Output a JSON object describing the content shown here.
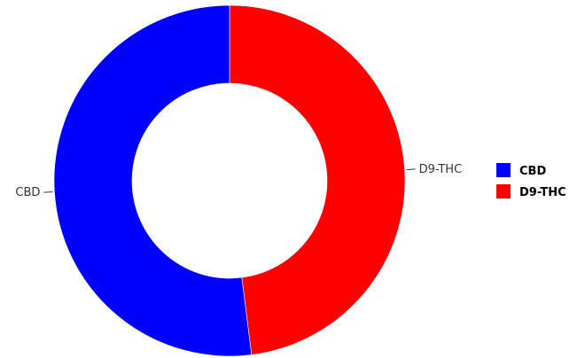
{
  "chart_data": {
    "type": "pie",
    "donut": true,
    "categories": [
      "CBD",
      "D9-THC"
    ],
    "values": [
      52,
      48
    ],
    "colors": [
      "#0000ff",
      "#ff0000"
    ],
    "legend": {
      "position": "right",
      "entries": [
        "CBD",
        "D9-THC"
      ]
    }
  }
}
